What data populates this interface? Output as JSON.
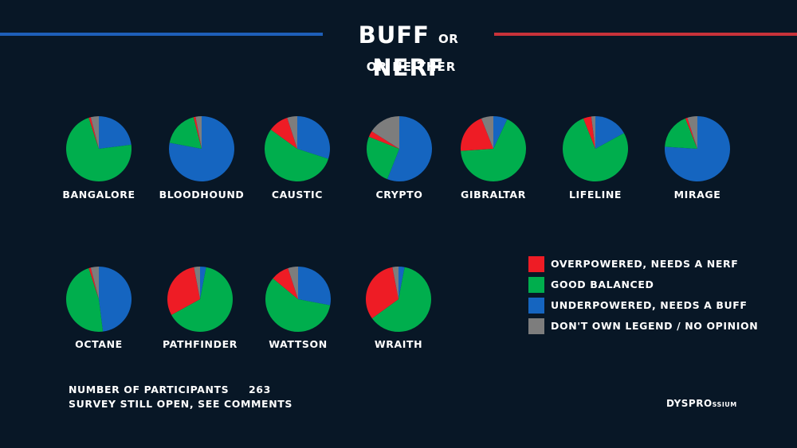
{
  "title": {
    "main_a": "BUFF",
    "small": "OR",
    "main_b": "NERF"
  },
  "subtitle": "OR NEITHER",
  "colors": {
    "overpowered": "#ee1c25",
    "balanced": "#00ae4d",
    "underpowered": "#1565c0",
    "no_opinion": "#7d7d7d",
    "background": "#081726",
    "left_bar": "#1e5fb8",
    "right_bar": "#c8323a"
  },
  "legend": [
    {
      "key": "overpowered",
      "label": "OVERPOWERED, NEEDS A NERF"
    },
    {
      "key": "balanced",
      "label": "GOOD BALANCED"
    },
    {
      "key": "underpowered",
      "label": "UNDERPOWERED, NEEDS A BUFF"
    },
    {
      "key": "no_opinion",
      "label": "DON'T OWN LEGEND / NO OPINION"
    }
  ],
  "chart_data": {
    "type": "pie",
    "unit": "percent",
    "series_order": [
      "overpowered",
      "balanced",
      "underpowered",
      "no_opinion"
    ],
    "pies": [
      {
        "name": "BANGALORE",
        "values": {
          "overpowered": 1,
          "balanced": 72,
          "underpowered": 23,
          "no_opinion": 4
        }
      },
      {
        "name": "BLOODHOUND",
        "values": {
          "overpowered": 1,
          "balanced": 18,
          "underpowered": 78,
          "no_opinion": 3
        }
      },
      {
        "name": "CAUSTIC",
        "values": {
          "overpowered": 10,
          "balanced": 55,
          "underpowered": 30,
          "no_opinion": 5
        }
      },
      {
        "name": "CRYPTO",
        "values": {
          "overpowered": 3,
          "balanced": 25,
          "underpowered": 56,
          "no_opinion": 16
        }
      },
      {
        "name": "GIBRALTAR",
        "values": {
          "overpowered": 20,
          "balanced": 67,
          "underpowered": 7,
          "no_opinion": 6
        }
      },
      {
        "name": "LIFELINE",
        "values": {
          "overpowered": 4,
          "balanced": 77,
          "underpowered": 17,
          "no_opinion": 2
        }
      },
      {
        "name": "MIRAGE",
        "values": {
          "overpowered": 1,
          "balanced": 18,
          "underpowered": 76,
          "no_opinion": 5
        }
      },
      {
        "name": "OCTANE",
        "values": {
          "overpowered": 1,
          "balanced": 47,
          "underpowered": 48,
          "no_opinion": 4
        }
      },
      {
        "name": "PATHFINDER",
        "values": {
          "overpowered": 30,
          "balanced": 64,
          "underpowered": 3,
          "no_opinion": 3
        }
      },
      {
        "name": "WATTSON",
        "values": {
          "overpowered": 9,
          "balanced": 58,
          "underpowered": 28,
          "no_opinion": 5
        }
      },
      {
        "name": "WRAITH",
        "values": {
          "overpowered": 32,
          "balanced": 62,
          "underpowered": 3,
          "no_opinion": 3
        }
      }
    ]
  },
  "footer": {
    "participants_label": "NUMBER OF PARTICIPANTS",
    "participants_value": "263",
    "note": "SURVEY STILL OPEN, SEE COMMENTS"
  },
  "brand": {
    "main": "DYSPRO",
    "small": "SSIUM"
  }
}
